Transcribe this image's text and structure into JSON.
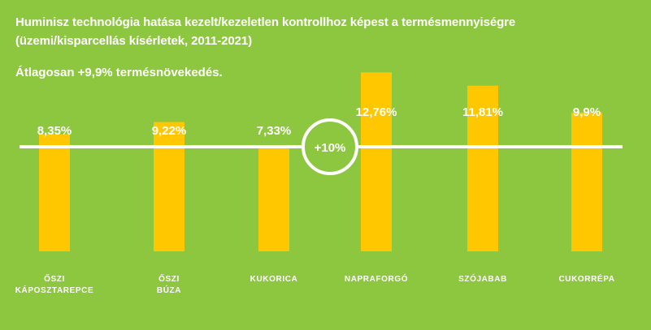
{
  "header": {
    "title_line1": "Huminisz technológia hatása kezelt/kezeletlen kontrollhoz képest a termésmennyiségre",
    "title_line2": "(üzemi/kisparcellás kísérletek, 2011-2021)",
    "subtitle": "Átlagosan +9,9% termésnövekedés."
  },
  "colors": {
    "background": "#8dc63f",
    "bar": "#ffc700",
    "text": "#ffffff",
    "reference_line": "#ffffff"
  },
  "chart_data": {
    "type": "bar",
    "categories": [
      [
        "ŐSZI",
        "KÁPOSZTAREPCE"
      ],
      [
        "ŐSZI",
        "BÚZA"
      ],
      [
        "KUKORICA"
      ],
      [
        "NAPRAFORGÓ"
      ],
      [
        "SZÓJABAB"
      ],
      [
        "CUKORRÉPA"
      ]
    ],
    "values": [
      8.35,
      9.22,
      7.33,
      12.76,
      11.81,
      9.9
    ],
    "value_labels": [
      "8,35%",
      "9,22%",
      "7,33%",
      "12,76%",
      "11,81%",
      "9,9%"
    ],
    "reference_line": {
      "value": 10,
      "label": "+10%"
    },
    "ylim": [
      0,
      14
    ],
    "grid": false,
    "legend": "none"
  }
}
